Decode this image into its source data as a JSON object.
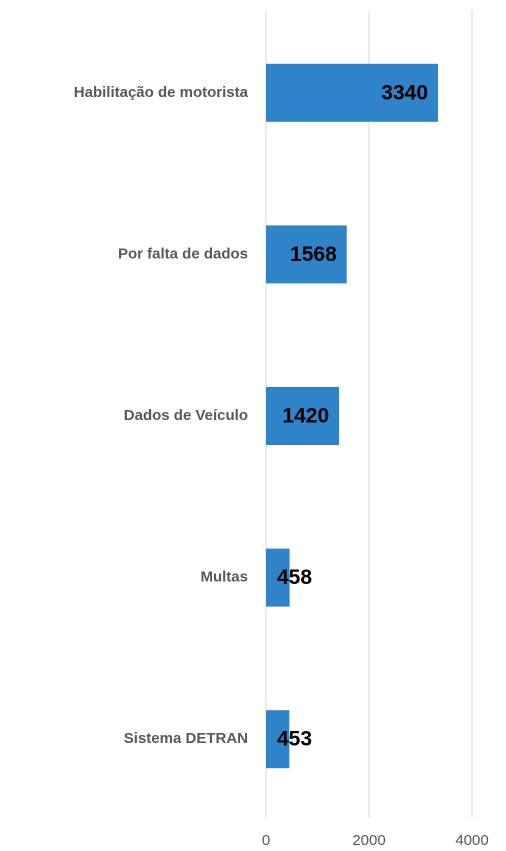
{
  "chart_data": {
    "type": "bar",
    "orientation": "horizontal",
    "categories": [
      "Habilitação de motorista",
      "Por falta de dados",
      "Dados de Veículo",
      "Multas",
      "Sistema DETRAN"
    ],
    "values": [
      3340,
      1568,
      1420,
      458,
      453
    ],
    "color": "#2e83c9",
    "xlim": [
      0,
      4000
    ],
    "xticks": [
      0,
      2000,
      4000
    ],
    "grid": true
  }
}
